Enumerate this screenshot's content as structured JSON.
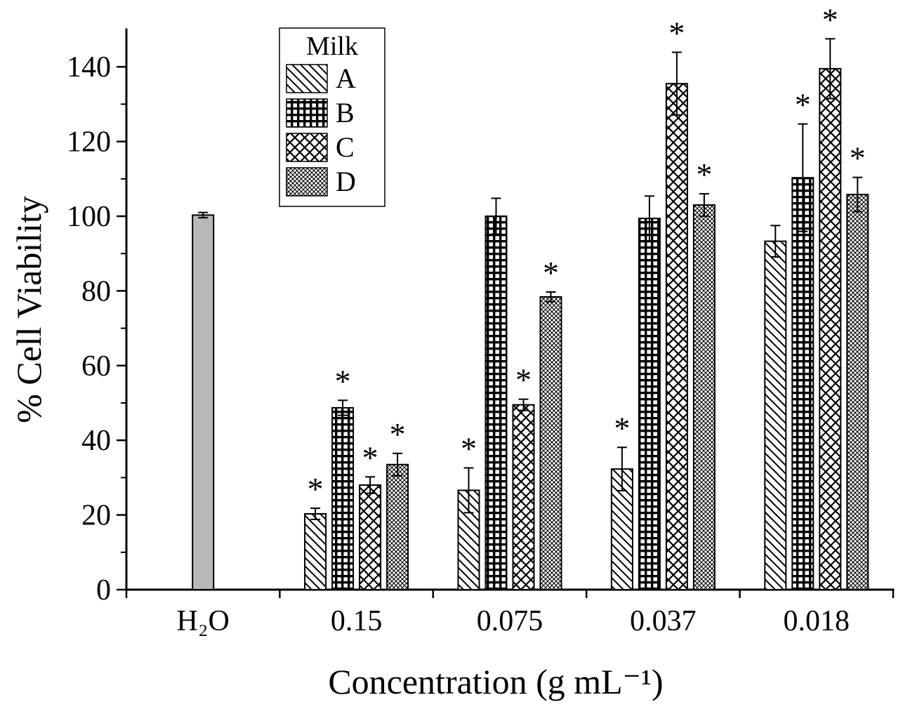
{
  "chart_data": {
    "type": "bar",
    "title": "",
    "xlabel": "Concentration (g mL⁻¹)",
    "ylabel": "% Cell Viability",
    "ylim": [
      0,
      150
    ],
    "yticks": [
      0,
      20,
      40,
      60,
      80,
      100,
      120,
      140
    ],
    "grid": false,
    "legend": {
      "title": "Milk",
      "position": "top-left-inside",
      "entries": [
        "A",
        "B",
        "C",
        "D"
      ]
    },
    "significance_marker": "*",
    "series": [
      {
        "key": "H2O",
        "name": "H₂O",
        "pattern": "solid",
        "color": "#b8b8b8"
      },
      {
        "key": "A",
        "name": "A",
        "pattern": "diagonal-hatch"
      },
      {
        "key": "B",
        "name": "B",
        "pattern": "grid"
      },
      {
        "key": "C",
        "name": "C",
        "pattern": "crosshatch"
      },
      {
        "key": "D",
        "name": "D",
        "pattern": "fine-crosshatch"
      }
    ],
    "groups": [
      {
        "label": "H₂O",
        "bars": [
          {
            "series": "H2O",
            "value": 100.3,
            "error": 0.7,
            "significant": false
          }
        ]
      },
      {
        "label": "0.15",
        "bars": [
          {
            "series": "A",
            "value": 20.3,
            "error": 1.5,
            "significant": true
          },
          {
            "series": "B",
            "value": 48.7,
            "error": 2.0,
            "significant": true
          },
          {
            "series": "C",
            "value": 28.0,
            "error": 2.2,
            "significant": true
          },
          {
            "series": "D",
            "value": 33.5,
            "error": 3.0,
            "significant": true
          }
        ]
      },
      {
        "label": "0.075",
        "bars": [
          {
            "series": "A",
            "value": 26.6,
            "error": 6.0,
            "significant": true
          },
          {
            "series": "B",
            "value": 100.0,
            "error": 4.8,
            "significant": false
          },
          {
            "series": "C",
            "value": 49.5,
            "error": 1.5,
            "significant": true
          },
          {
            "series": "D",
            "value": 78.4,
            "error": 1.3,
            "significant": true
          }
        ]
      },
      {
        "label": "0.037",
        "bars": [
          {
            "series": "A",
            "value": 32.3,
            "error": 5.8,
            "significant": true
          },
          {
            "series": "B",
            "value": 99.4,
            "error": 6.0,
            "significant": false
          },
          {
            "series": "C",
            "value": 135.5,
            "error": 8.4,
            "significant": true
          },
          {
            "series": "D",
            "value": 103.0,
            "error": 3.0,
            "significant": true
          }
        ]
      },
      {
        "label": "0.018",
        "bars": [
          {
            "series": "A",
            "value": 93.3,
            "error": 4.2,
            "significant": false
          },
          {
            "series": "B",
            "value": 110.3,
            "error": 14.4,
            "significant": true
          },
          {
            "series": "C",
            "value": 139.5,
            "error": 8.0,
            "significant": true
          },
          {
            "series": "D",
            "value": 105.8,
            "error": 4.6,
            "significant": true
          }
        ]
      }
    ]
  }
}
